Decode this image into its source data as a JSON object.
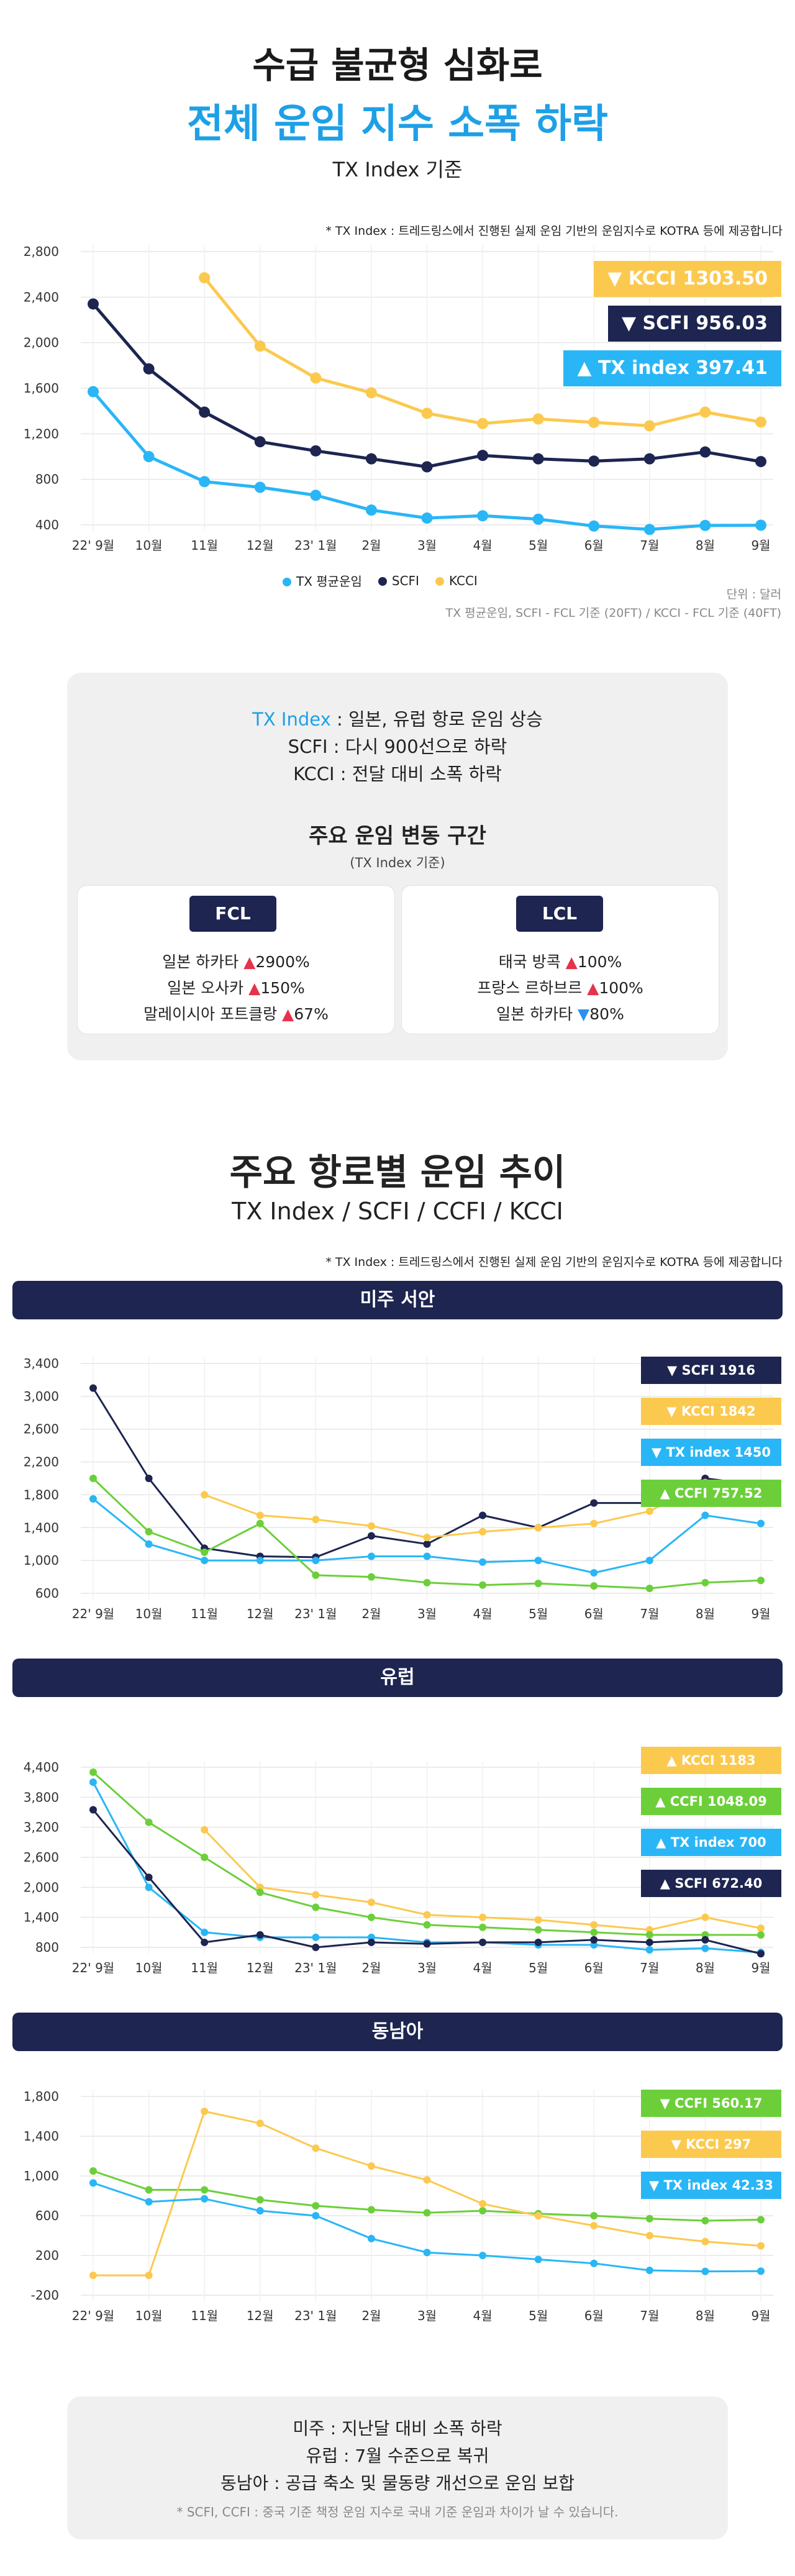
{
  "header": {
    "title": "수급 불균형 심화로",
    "subtitle": "전체 운임 지수 소폭 하락",
    "basis": "TX Index 기준"
  },
  "top_chart": {
    "source_note": "* TX Index : 트레드링스에서 진행된 실제 운임 기반의 운임지수로 KOTRA 등에 제공합니다",
    "unit_note": "단위 : 달러",
    "basis_note": "TX 평균운임, SCFI - FCL 기준 (20FT) / KCCI - FCL 기준 (40FT)",
    "badges": [
      {
        "arrow": "▼",
        "label": "KCCI",
        "value": "1303.50",
        "color": "#fcc94f"
      },
      {
        "arrow": "▼",
        "label": "SCFI",
        "value": "956.03",
        "color": "#1d2550"
      },
      {
        "arrow": "▲",
        "label": "TX index",
        "value": "397.41",
        "color": "#29b6f6"
      }
    ]
  },
  "summary_box": {
    "line1_key": "TX Index",
    "line1_rest": " : 일본, 유럽 항로 운임 상승",
    "line2": "SCFI : 다시 900선으로 하락",
    "line3": "KCCI : 전달 대비 소폭 하락",
    "section_title": "주요 운임 변동 구간",
    "section_sub": "(TX Index 기준)",
    "fcl": {
      "label": "FCL",
      "items": [
        {
          "name": "일본 하카타 ",
          "arrow": "▲",
          "value": "2900%"
        },
        {
          "name": "일본 오사카 ",
          "arrow": "▲",
          "value": "150%"
        },
        {
          "name": "말레이시아 포트클랑 ",
          "arrow": "▲",
          "value": "67%"
        }
      ]
    },
    "lcl": {
      "label": "LCL",
      "items": [
        {
          "name": "태국 방콕 ",
          "arrow": "▲",
          "value": "100%"
        },
        {
          "name": "프랑스 르하브르 ",
          "arrow": "▲",
          "value": "100%"
        },
        {
          "name": "일본 하카타 ",
          "arrow": "▼",
          "value": "80%"
        }
      ]
    }
  },
  "routes_header": {
    "title": "주요 항로별 운임 추이",
    "subtitle": "TX Index / SCFI / CCFI / KCCI",
    "source_note": "* TX Index : 트레드링스에서 진행된 실제 운임 기반의 운임지수로 KOTRA 등에 제공합니다"
  },
  "route_banners": [
    "미주 서안",
    "유럽",
    "동남아"
  ],
  "route_badges": [
    [
      {
        "arrow": "▼",
        "label": "SCFI",
        "value": "1916",
        "color": "#1d2550"
      },
      {
        "arrow": "▼",
        "label": "KCCI",
        "value": "1842",
        "color": "#fcc94f"
      },
      {
        "arrow": "▼",
        "label": "TX index",
        "value": "1450",
        "color": "#29b6f6"
      },
      {
        "arrow": "▲",
        "label": "CCFI",
        "value": "757.52",
        "color": "#6ccf3a"
      }
    ],
    [
      {
        "arrow": "▲",
        "label": "KCCI",
        "value": "1183",
        "color": "#fcc94f"
      },
      {
        "arrow": "▲",
        "label": "CCFI",
        "value": "1048.09",
        "color": "#6ccf3a"
      },
      {
        "arrow": "▲",
        "label": "TX index",
        "value": "700",
        "color": "#29b6f6"
      },
      {
        "arrow": "▲",
        "label": "SCFI",
        "value": "672.40",
        "color": "#1d2550"
      }
    ],
    [
      {
        "arrow": "▼",
        "label": "CCFI",
        "value": "560.17",
        "color": "#6ccf3a"
      },
      {
        "arrow": "▼",
        "label": "KCCI",
        "value": "297",
        "color": "#fcc94f"
      },
      {
        "arrow": "▼",
        "label": "TX index",
        "value": "42.33",
        "color": "#29b6f6"
      }
    ]
  ],
  "bottom_box": {
    "line1": "미주 : 지난달 대비 소폭 하락",
    "line2": "유럽 : 7월 수준으로 복귀",
    "line3": "동남아 : 공급 축소 및 물동량 개선으로 운임 보합",
    "footnote": "* SCFI, CCFI : 중국 기준 책정 운임 지수로 국내 기준 운임과 차이가 날 수 있습니다."
  },
  "chart_data": [
    {
      "type": "line",
      "title": "",
      "x": [
        "22' 9월",
        "10월",
        "11월",
        "12월",
        "23' 1월",
        "2월",
        "3월",
        "4월",
        "5월",
        "6월",
        "7월",
        "8월",
        "9월"
      ],
      "ylim": [
        400,
        2800
      ],
      "yticks": [
        "400",
        "800",
        "1,200",
        "1,600",
        "2,000",
        "2,400",
        "2,800"
      ],
      "grid": true,
      "legend": "bottom",
      "series": [
        {
          "name": "TX 평균운임",
          "color": "#29b6f6",
          "values": [
            1570,
            1000,
            780,
            730,
            660,
            530,
            460,
            480,
            450,
            390,
            360,
            395,
            397
          ]
        },
        {
          "name": "SCFI",
          "color": "#1d2550",
          "values": [
            2340,
            1770,
            1390,
            1130,
            1050,
            980,
            910,
            1010,
            980,
            960,
            980,
            1040,
            956
          ]
        },
        {
          "name": "KCCI",
          "color": "#fcc94f",
          "values": [
            null,
            null,
            2570,
            1970,
            1690,
            1560,
            1380,
            1290,
            1330,
            1300,
            1270,
            1390,
            1303
          ]
        }
      ]
    },
    {
      "type": "line",
      "title": "미주 서안",
      "x": [
        "22' 9월",
        "10월",
        "11월",
        "12월",
        "23' 1월",
        "2월",
        "3월",
        "4월",
        "5월",
        "6월",
        "7월",
        "8월",
        "9월"
      ],
      "ylim": [
        600,
        3400
      ],
      "yticks": [
        "600",
        "1,000",
        "1,400",
        "1,800",
        "2,200",
        "2,600",
        "3,000",
        "3,400"
      ],
      "grid": true,
      "series": [
        {
          "name": "SCFI",
          "color": "#1d2550",
          "values": [
            3100,
            2000,
            1150,
            1050,
            1040,
            1300,
            1200,
            1550,
            1400,
            1700,
            1700,
            2000,
            1916
          ]
        },
        {
          "name": "KCCI",
          "color": "#fcc94f",
          "values": [
            null,
            null,
            1800,
            1550,
            1500,
            1420,
            1280,
            1350,
            1400,
            1450,
            1600,
            1950,
            1842
          ]
        },
        {
          "name": "TX index",
          "color": "#29b6f6",
          "values": [
            1750,
            1200,
            1000,
            1000,
            1000,
            1050,
            1050,
            980,
            1000,
            850,
            1000,
            1550,
            1450
          ]
        },
        {
          "name": "CCFI",
          "color": "#6ccf3a",
          "values": [
            2000,
            1350,
            1100,
            1450,
            820,
            800,
            730,
            700,
            720,
            690,
            660,
            730,
            757
          ]
        }
      ]
    },
    {
      "type": "line",
      "title": "유럽",
      "x": [
        "22' 9월",
        "10월",
        "11월",
        "12월",
        "23' 1월",
        "2월",
        "3월",
        "4월",
        "5월",
        "6월",
        "7월",
        "8월",
        "9월"
      ],
      "ylim": [
        800,
        4400
      ],
      "yticks": [
        "800",
        "1,400",
        "2,000",
        "2,600",
        "3,200",
        "3,800",
        "4,400"
      ],
      "grid": true,
      "series": [
        {
          "name": "KCCI",
          "color": "#fcc94f",
          "values": [
            null,
            null,
            3150,
            2000,
            1850,
            1700,
            1450,
            1400,
            1350,
            1250,
            1150,
            1400,
            1183
          ]
        },
        {
          "name": "CCFI",
          "color": "#6ccf3a",
          "values": [
            4300,
            3300,
            2600,
            1900,
            1600,
            1400,
            1250,
            1200,
            1150,
            1100,
            1050,
            1050,
            1048
          ]
        },
        {
          "name": "TX index",
          "color": "#29b6f6",
          "values": [
            4100,
            2000,
            1100,
            1000,
            1000,
            1000,
            900,
            900,
            850,
            850,
            750,
            780,
            700
          ]
        },
        {
          "name": "SCFI",
          "color": "#1d2550",
          "values": [
            3550,
            2200,
            900,
            1050,
            800,
            900,
            870,
            900,
            900,
            950,
            900,
            950,
            672
          ]
        }
      ]
    },
    {
      "type": "line",
      "title": "동남아",
      "x": [
        "22' 9월",
        "10월",
        "11월",
        "12월",
        "23' 1월",
        "2월",
        "3월",
        "4월",
        "5월",
        "6월",
        "7월",
        "8월",
        "9월"
      ],
      "ylim": [
        -200,
        1800
      ],
      "yticks": [
        "-200",
        "200",
        "600",
        "1,000",
        "1,400",
        "1,800"
      ],
      "grid": true,
      "series": [
        {
          "name": "CCFI",
          "color": "#6ccf3a",
          "values": [
            1050,
            860,
            860,
            760,
            700,
            660,
            630,
            650,
            620,
            600,
            570,
            550,
            560
          ]
        },
        {
          "name": "KCCI",
          "color": "#fcc94f",
          "values": [
            0,
            0,
            1650,
            1530,
            1280,
            1100,
            960,
            720,
            600,
            500,
            400,
            340,
            297
          ]
        },
        {
          "name": "TX index",
          "color": "#29b6f6",
          "values": [
            930,
            740,
            770,
            650,
            600,
            370,
            230,
            200,
            160,
            120,
            50,
            40,
            42
          ]
        }
      ]
    }
  ]
}
